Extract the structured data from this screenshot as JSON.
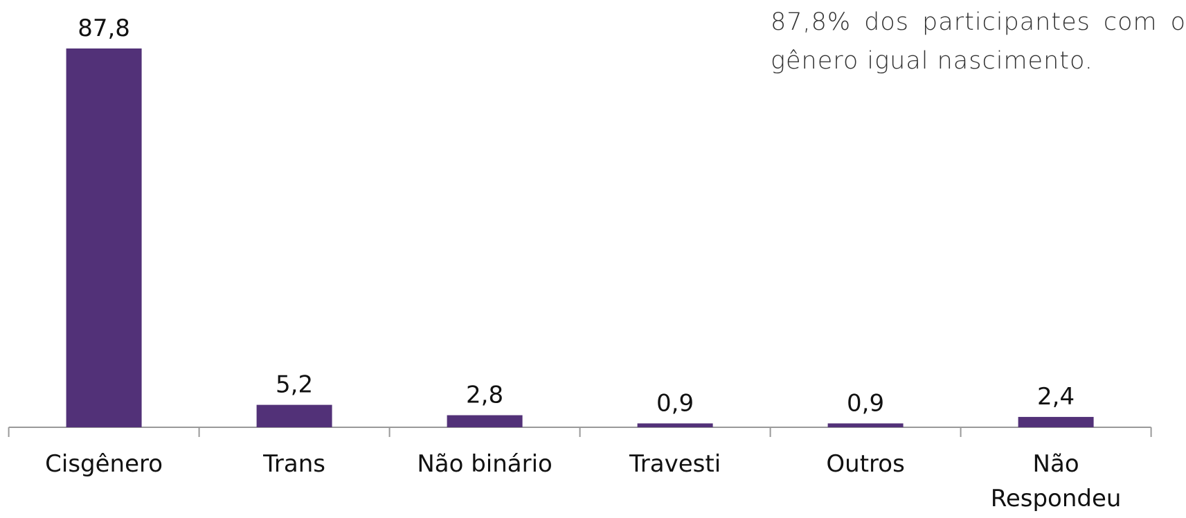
{
  "chart_data": {
    "type": "bar",
    "annotation": "87,8% dos participantes com o gênero igual nascimento.",
    "categories": [
      "Cisgênero",
      "Trans",
      "Não binário",
      "Travesti",
      "Outros",
      "Não Respondeu"
    ],
    "values": [
      87.8,
      5.2,
      2.8,
      0.9,
      0.9,
      2.4
    ],
    "value_labels": [
      "87,8",
      "5,2",
      "2,8",
      "0,9",
      "0,9",
      "2,4"
    ],
    "color": "#523178",
    "ylim": [
      0,
      100
    ]
  }
}
